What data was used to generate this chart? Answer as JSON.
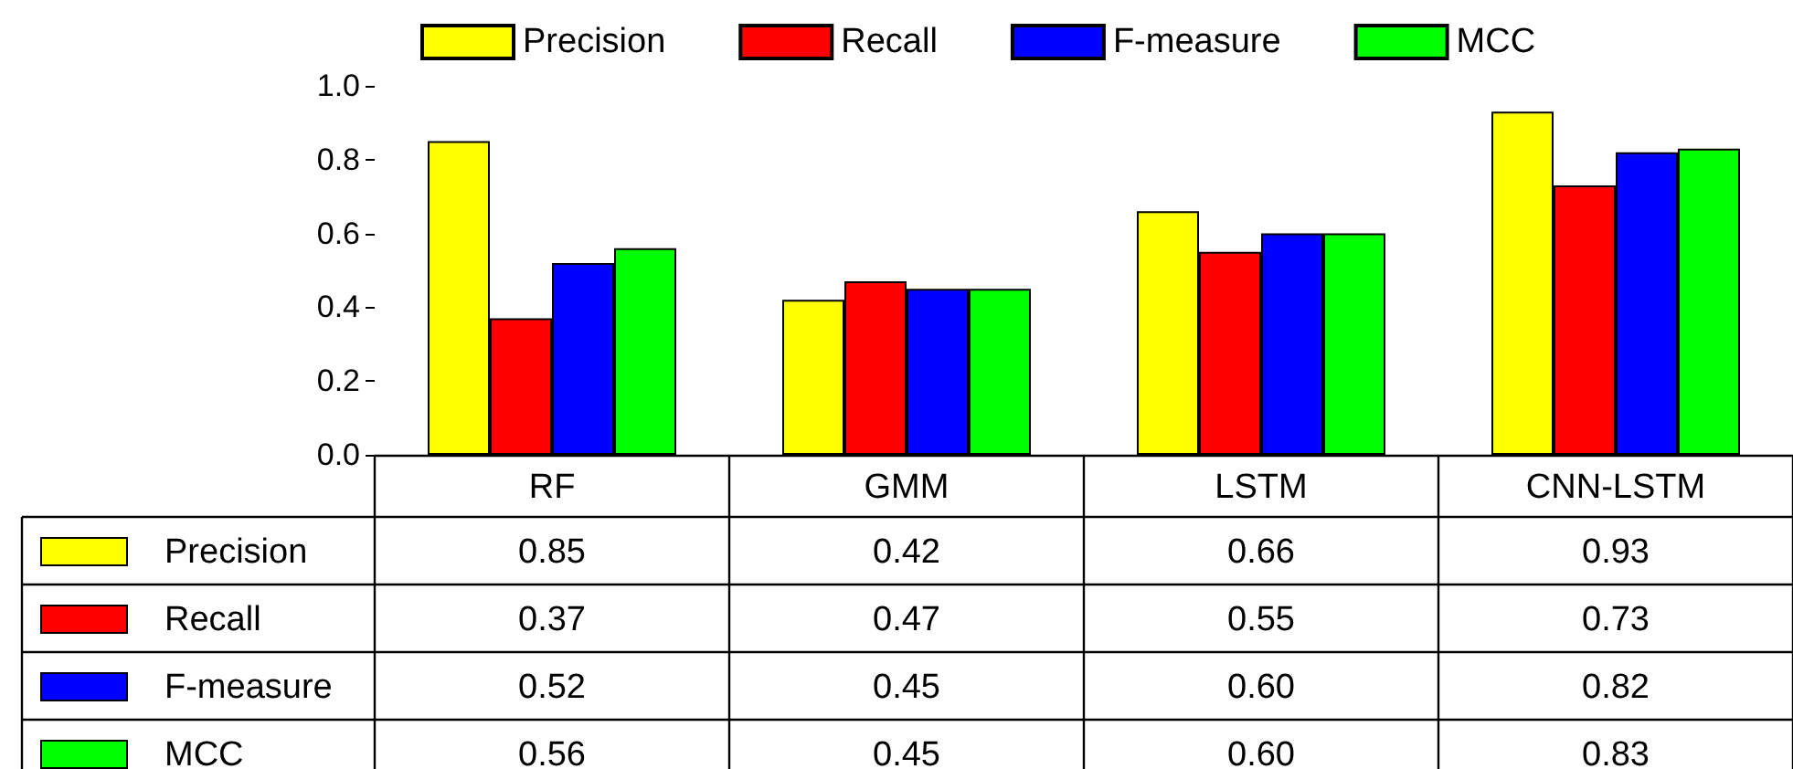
{
  "chart_data": {
    "type": "bar",
    "categories": [
      "RF",
      "GMM",
      "LSTM",
      "CNN-LSTM"
    ],
    "series": [
      {
        "name": "Precision",
        "color": "#ffff00",
        "values": [
          0.85,
          0.42,
          0.66,
          0.93
        ],
        "value_labels": [
          "0.85",
          "0.42",
          "0.66",
          "0.93"
        ]
      },
      {
        "name": "Recall",
        "color": "#ff0000",
        "values": [
          0.37,
          0.47,
          0.55,
          0.73
        ],
        "value_labels": [
          "0.37",
          "0.47",
          "0.55",
          "0.73"
        ]
      },
      {
        "name": "F-measure",
        "color": "#0000ff",
        "values": [
          0.52,
          0.45,
          0.6,
          0.82
        ],
        "value_labels": [
          "0.52",
          "0.45",
          "0.60",
          "0.82"
        ]
      },
      {
        "name": "MCC",
        "color": "#00ff00",
        "values": [
          0.56,
          0.45,
          0.6,
          0.83
        ],
        "value_labels": [
          "0.56",
          "0.45",
          "0.60",
          "0.83"
        ]
      }
    ],
    "ylim": [
      0,
      1
    ],
    "yticks": [
      {
        "value": 0,
        "label": "0.0"
      },
      {
        "value": 0.2,
        "label": "0.2"
      },
      {
        "value": 0.4,
        "label": "0.4"
      },
      {
        "value": 0.6,
        "label": "0.6"
      },
      {
        "value": 0.8,
        "label": "0.8"
      },
      {
        "value": 1,
        "label": "1.0"
      }
    ],
    "grid": false,
    "legend": "top"
  }
}
